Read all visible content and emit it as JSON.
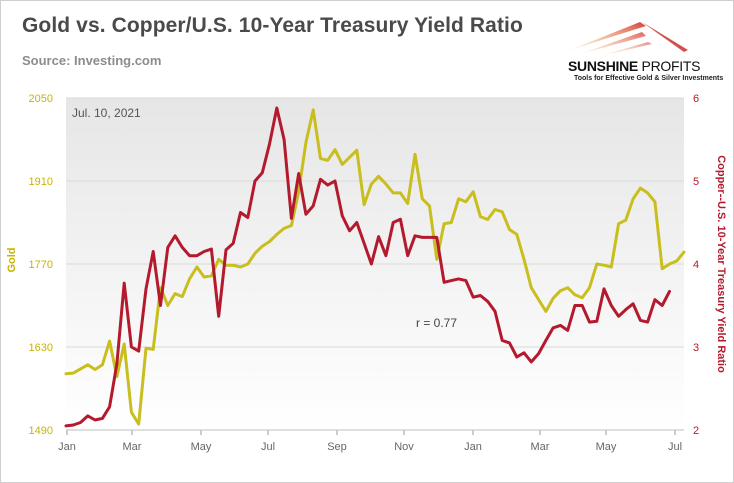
{
  "header": {
    "title": "Gold vs. Copper/U.S. 10-Year Treasury Yield Ratio",
    "source": "Source: Investing.com"
  },
  "logo": {
    "brand_bold": "SUNSHINE",
    "brand_thin": " PROFITS",
    "tagline": "Tools for Effective Gold & Silver Investments"
  },
  "colors": {
    "gold": "#c8be1e",
    "ratio": "#b41a2e",
    "plot_bg_top": "#e6e6e6",
    "plot_bg_bottom": "#ffffff"
  },
  "chart_data": {
    "type": "line",
    "annotation_date": "Jul. 10, 2021",
    "correlation_label": "r = 0.77",
    "x_ticks": [
      "Jan",
      "Mar",
      "May",
      "Jul",
      "Sep",
      "Nov",
      "Jan",
      "Mar",
      "May",
      "Jul"
    ],
    "y_left": {
      "label": "Gold",
      "ticks": [
        "1490",
        "1630",
        "1770",
        "1910",
        "2050"
      ],
      "range": [
        1490,
        2050
      ]
    },
    "y_right": {
      "label": "Copper--U.S. 10-Year Treasury Yield Ratio",
      "ticks": [
        "2",
        "3",
        "4",
        "5",
        "6"
      ],
      "range": [
        2,
        6
      ]
    },
    "x_range": [
      0,
      83
    ],
    "series": [
      {
        "axis": "left",
        "color": "#c8be1e",
        "points": [
          [
            0,
            1585
          ],
          [
            1,
            1586
          ],
          [
            2,
            1593
          ],
          [
            3,
            1600
          ],
          [
            4,
            1592
          ],
          [
            5,
            1600
          ],
          [
            6,
            1640
          ],
          [
            7,
            1580
          ],
          [
            8,
            1635
          ],
          [
            9,
            1520
          ],
          [
            10,
            1500
          ],
          [
            11,
            1628
          ],
          [
            12,
            1626
          ],
          [
            13,
            1730
          ],
          [
            14,
            1700
          ],
          [
            15,
            1720
          ],
          [
            16,
            1715
          ],
          [
            17,
            1745
          ],
          [
            18,
            1765
          ],
          [
            19,
            1748
          ],
          [
            20,
            1750
          ],
          [
            21,
            1778
          ],
          [
            22,
            1768
          ],
          [
            23,
            1768
          ],
          [
            24,
            1765
          ],
          [
            25,
            1770
          ],
          [
            26,
            1788
          ],
          [
            27,
            1800
          ],
          [
            28,
            1808
          ],
          [
            29,
            1820
          ],
          [
            30,
            1830
          ],
          [
            31,
            1835
          ],
          [
            32,
            1892
          ],
          [
            33,
            1975
          ],
          [
            34,
            2030
          ],
          [
            35,
            1948
          ],
          [
            36,
            1945
          ],
          [
            37,
            1963
          ],
          [
            38,
            1938
          ],
          [
            39,
            1950
          ],
          [
            40,
            1962
          ],
          [
            41,
            1870
          ],
          [
            42,
            1905
          ],
          [
            43,
            1918
          ],
          [
            44,
            1905
          ],
          [
            45,
            1890
          ],
          [
            46,
            1890
          ],
          [
            47,
            1872
          ],
          [
            48,
            1955
          ],
          [
            49,
            1880
          ],
          [
            50,
            1868
          ],
          [
            51,
            1778
          ],
          [
            52,
            1838
          ],
          [
            53,
            1840
          ],
          [
            54,
            1880
          ],
          [
            55,
            1875
          ],
          [
            56,
            1892
          ],
          [
            57,
            1850
          ],
          [
            58,
            1845
          ],
          [
            59,
            1862
          ],
          [
            60,
            1858
          ],
          [
            61,
            1828
          ],
          [
            62,
            1820
          ],
          [
            63,
            1778
          ],
          [
            64,
            1730
          ],
          [
            65,
            1710
          ],
          [
            66,
            1690
          ],
          [
            67,
            1712
          ],
          [
            68,
            1725
          ],
          [
            69,
            1730
          ],
          [
            70,
            1718
          ],
          [
            71,
            1713
          ],
          [
            72,
            1730
          ],
          [
            73,
            1770
          ],
          [
            74,
            1768
          ],
          [
            75,
            1765
          ],
          [
            76,
            1838
          ],
          [
            77,
            1844
          ],
          [
            78,
            1880
          ],
          [
            79,
            1898
          ],
          [
            80,
            1890
          ],
          [
            81,
            1875
          ],
          [
            82,
            1762
          ],
          [
            83,
            1770
          ],
          [
            84,
            1775
          ],
          [
            85,
            1790
          ]
        ]
      },
      {
        "axis": "right",
        "color": "#b41a2e",
        "points": [
          [
            0,
            2.05
          ],
          [
            1,
            2.06
          ],
          [
            2,
            2.09
          ],
          [
            3,
            2.17
          ],
          [
            4,
            2.12
          ],
          [
            5,
            2.14
          ],
          [
            6,
            2.28
          ],
          [
            7,
            2.8
          ],
          [
            8,
            3.77
          ],
          [
            9,
            3.0
          ],
          [
            10,
            2.95
          ],
          [
            11,
            3.7
          ],
          [
            12,
            4.15
          ],
          [
            13,
            3.5
          ],
          [
            14,
            4.2
          ],
          [
            15,
            4.34
          ],
          [
            16,
            4.2
          ],
          [
            17,
            4.1
          ],
          [
            18,
            4.1
          ],
          [
            19,
            4.15
          ],
          [
            20,
            4.18
          ],
          [
            21,
            3.37
          ],
          [
            22,
            4.17
          ],
          [
            23,
            4.25
          ],
          [
            24,
            4.62
          ],
          [
            25,
            4.56
          ],
          [
            26,
            5.0
          ],
          [
            27,
            5.1
          ],
          [
            28,
            5.45
          ],
          [
            29,
            5.88
          ],
          [
            30,
            5.5
          ],
          [
            31,
            4.55
          ],
          [
            32,
            5.09
          ],
          [
            33,
            4.6
          ],
          [
            34,
            4.7
          ],
          [
            35,
            5.02
          ],
          [
            36,
            4.95
          ],
          [
            37,
            5.0
          ],
          [
            38,
            4.58
          ],
          [
            39,
            4.4
          ],
          [
            40,
            4.5
          ],
          [
            41,
            4.25
          ],
          [
            42,
            4.0
          ],
          [
            43,
            4.33
          ],
          [
            44,
            4.1
          ],
          [
            45,
            4.5
          ],
          [
            46,
            4.54
          ],
          [
            47,
            4.1
          ],
          [
            48,
            4.34
          ],
          [
            49,
            4.32
          ],
          [
            50,
            4.32
          ],
          [
            51,
            4.32
          ],
          [
            52,
            3.78
          ],
          [
            53,
            3.8
          ],
          [
            54,
            3.82
          ],
          [
            55,
            3.8
          ],
          [
            56,
            3.6
          ],
          [
            57,
            3.62
          ],
          [
            58,
            3.55
          ],
          [
            59,
            3.43
          ],
          [
            60,
            3.08
          ],
          [
            61,
            3.05
          ],
          [
            62,
            2.88
          ],
          [
            63,
            2.93
          ],
          [
            64,
            2.82
          ],
          [
            65,
            2.92
          ],
          [
            66,
            3.08
          ],
          [
            67,
            3.23
          ],
          [
            68,
            3.26
          ],
          [
            69,
            3.2
          ],
          [
            70,
            3.5
          ],
          [
            71,
            3.5
          ],
          [
            72,
            3.3
          ],
          [
            73,
            3.31
          ],
          [
            74,
            3.7
          ],
          [
            75,
            3.5
          ],
          [
            76,
            3.37
          ],
          [
            77,
            3.45
          ],
          [
            78,
            3.52
          ],
          [
            79,
            3.32
          ],
          [
            80,
            3.3
          ],
          [
            81,
            3.57
          ],
          [
            82,
            3.5
          ],
          [
            83,
            3.67
          ]
        ]
      }
    ]
  }
}
